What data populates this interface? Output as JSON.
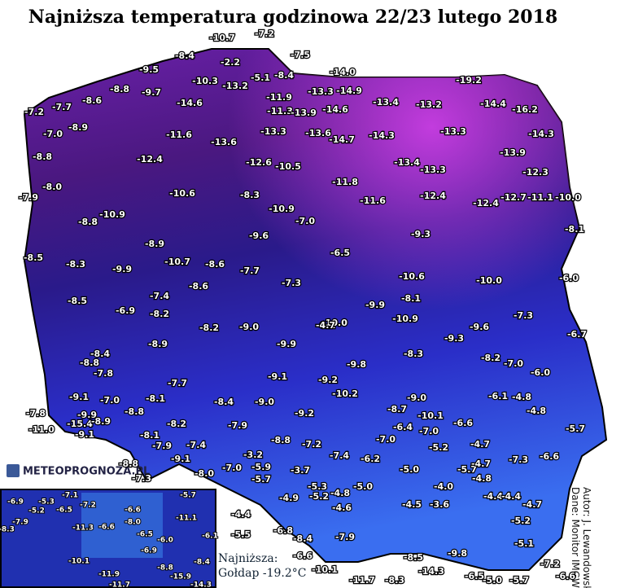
{
  "title": "Najniższa temperatura godzinowa 22/23 lutego 2018",
  "logo": "METEOPROGNOZA.PL",
  "credits": [
    "Autor: J. Lewandowski",
    "Dane: Monitor IMGW"
  ],
  "legend": {
    "label": "Najniższa:",
    "value": "Gołdap -19.2°C"
  },
  "stations": [
    "-10.7",
    "-7.2",
    "-8.4",
    "-2.2",
    "-7.5",
    "-9.5",
    "-10.3",
    "-5.1",
    "-8.4",
    "-14.0",
    "-19.2",
    "-8.8",
    "-9.7",
    "-13.2",
    "-13.3",
    "-14.9",
    "-7.2",
    "-7.7",
    "-8.6",
    "-14.6",
    "-11.9",
    "-11.3",
    "-13.9",
    "-14.6",
    "-13.4",
    "-13.2",
    "-14.4",
    "-16.2",
    "-7.0",
    "-8.9",
    "-11.6",
    "-13.3",
    "-13.6",
    "-14.7",
    "-14.3",
    "-13.3",
    "-14.3",
    "-13.6",
    "-8.8",
    "-12.4",
    "-12.6",
    "-10.5",
    "-13.4",
    "-13.3",
    "-13.9",
    "-12.3",
    "-8.0",
    "-10.6",
    "-8.3",
    "-11.8",
    "-12.4",
    "-7.9",
    "-11.6",
    "-12.4",
    "-12.7",
    "-11.1",
    "-10.0",
    "-10.9",
    "-10.9",
    "-7.0",
    "-8.8",
    "-8.1",
    "-9.6",
    "-9.3",
    "-8.5",
    "-8.9",
    "-6.5",
    "-8.3",
    "-9.9",
    "-10.7",
    "-8.6",
    "-7.7",
    "-10.6",
    "-10.0",
    "-6.0",
    "-7.3",
    "-8.6",
    "-8.1",
    "-7.4",
    "-8.5",
    "-6.9",
    "-8.2",
    "-9.9",
    "-10.9",
    "-7.3",
    "-8.2",
    "-9.0",
    "-10.0",
    "-9.6",
    "-6.7",
    "-8.9",
    "-9.9",
    "-9.3",
    "-8.4",
    "-8.3",
    "-8.2",
    "-7.0",
    "-8.8",
    "-9.8",
    "-7.8",
    "-6.0",
    "-9.1",
    "-9.2",
    "-7.7",
    "-10.2",
    "-9.1",
    "-7.0",
    "-8.1",
    "-8.4",
    "-9.0",
    "-9.0",
    "-6.1",
    "-4.8",
    "-7.8",
    "-9.9",
    "-15.4",
    "-8.9",
    "-8.8",
    "-9.2",
    "-8.7",
    "-10.1",
    "-4.8",
    "-11.0",
    "-9.1",
    "-8.2",
    "-7.9",
    "-6.4",
    "-7.0",
    "-6.6",
    "-5.7",
    "-8.1",
    "-8.8",
    "-7.2",
    "-7.0",
    "-4.7",
    "-5.2",
    "-7.9",
    "-7.4",
    "-7.4",
    "-6.2",
    "-6.6",
    "-7.3",
    "-8.8",
    "-9.1",
    "-3.2",
    "-5.9",
    "-7.0",
    "-5.0",
    "-5.7",
    "-4.7",
    "-7.3",
    "-8.0",
    "-3.7",
    "-5.7",
    "-4.0",
    "-4.8",
    "-4.4",
    "-5.0",
    "-5.3",
    "-4.9",
    "-5.2",
    "-4.8",
    "-4.6",
    "-4.5",
    "-4.4",
    "-3.6",
    "-5.2",
    "-4.4",
    "-4.7",
    "-5.5",
    "-6.8",
    "-8.4",
    "-7.9",
    "-6.6",
    "-10.1",
    "-11.7",
    "-8.3",
    "-8.5",
    "-14.3",
    "-9.8",
    "-6.5",
    "-5.0",
    "-5.7",
    "-7.2",
    "-6.6",
    "-5.1",
    "-6.1",
    "-4.7"
  ],
  "inset_stations": [
    "-6.9",
    "-5.3",
    "-7.1",
    "-7.2",
    "-5.7",
    "-5.2",
    "-6.5",
    "-6.6",
    "-7.9",
    "-11.3",
    "-8.0",
    "-11.1",
    "-6.6",
    "-6.5",
    "-6.0",
    "-6.1",
    "-8.3",
    "-6.9",
    "-10.1",
    "-11.9",
    "-8.8",
    "-8.4",
    "-15.9",
    "-11.7",
    "-14.3"
  ]
}
